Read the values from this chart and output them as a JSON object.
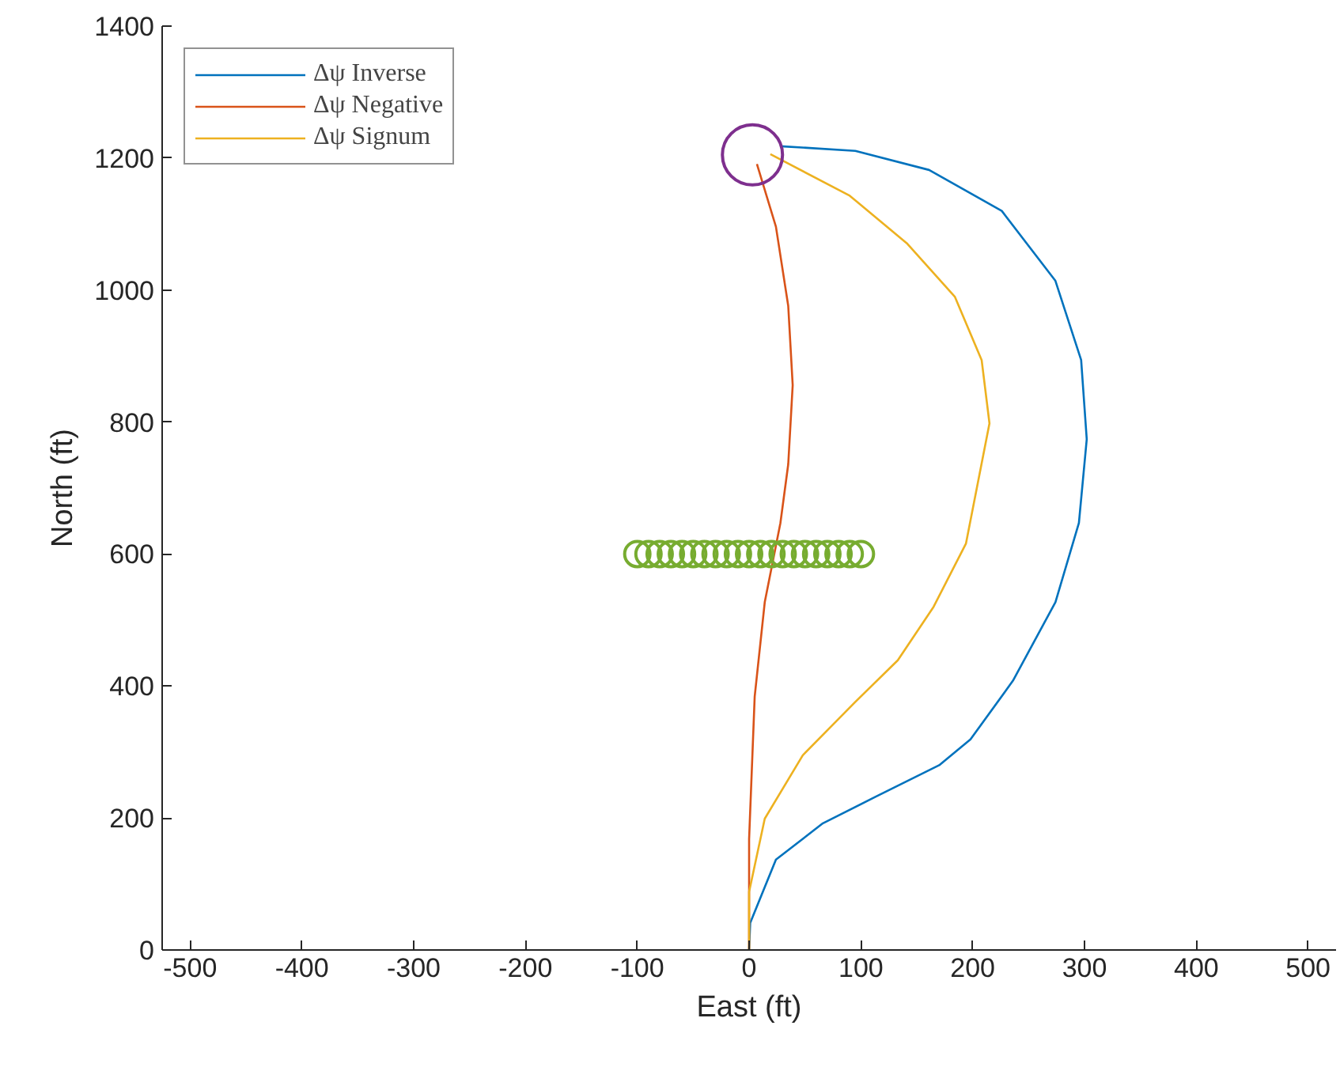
{
  "chart_data": {
    "type": "line",
    "xlabel": "East (ft)",
    "ylabel": "North (ft)",
    "xlim": [
      -525,
      525
    ],
    "ylim": [
      0,
      1400
    ],
    "xticks": [
      -500,
      -400,
      -300,
      -200,
      -100,
      0,
      100,
      200,
      300,
      400,
      500
    ],
    "yticks": [
      0,
      200,
      400,
      600,
      800,
      1000,
      1200,
      1400
    ],
    "grid": false,
    "legend": "top left",
    "series": [
      {
        "name": "Δψ Inverse",
        "color": "#0072bd",
        "x": [
          0,
          1,
          24,
          66,
          113,
          170,
          198,
          236,
          274,
          295,
          302,
          297,
          274,
          226,
          161,
          95,
          28
        ],
        "values": [
          0,
          41,
          137,
          192,
          232,
          280,
          319,
          408,
          527,
          647,
          774,
          894,
          1014,
          1120,
          1182,
          1211,
          1218
        ]
      },
      {
        "name": "Δψ Negative",
        "color": "#d95319",
        "x": [
          0,
          0,
          5,
          14,
          28,
          35,
          39,
          35,
          24,
          7
        ],
        "values": [
          0,
          168,
          384,
          527,
          647,
          736,
          856,
          976,
          1096,
          1191
        ]
      },
      {
        "name": "Δψ Signum",
        "color": "#edb120",
        "x": [
          0,
          0,
          14,
          48,
          95,
          133,
          165,
          194,
          215,
          208,
          184,
          141,
          90,
          19
        ],
        "values": [
          0,
          88,
          199,
          295,
          376,
          439,
          520,
          616,
          798,
          894,
          990,
          1071,
          1143,
          1206
        ]
      },
      {
        "type": "scatter",
        "marker": "circle",
        "color": "#77ac30",
        "x": [
          -100,
          -90,
          -80,
          -70,
          -60,
          -50,
          -40,
          -30,
          -20,
          -10,
          0,
          10,
          20,
          30,
          40,
          50,
          60,
          70,
          80,
          90,
          100
        ],
        "values": [
          600,
          600,
          600,
          600,
          600,
          600,
          600,
          600,
          600,
          600,
          600,
          600,
          600,
          600,
          600,
          600,
          600,
          600,
          600,
          600,
          600
        ]
      },
      {
        "type": "scatter",
        "marker": "circle",
        "color": "#7e2f8e",
        "x": [
          3
        ],
        "values": [
          1205
        ]
      }
    ]
  }
}
